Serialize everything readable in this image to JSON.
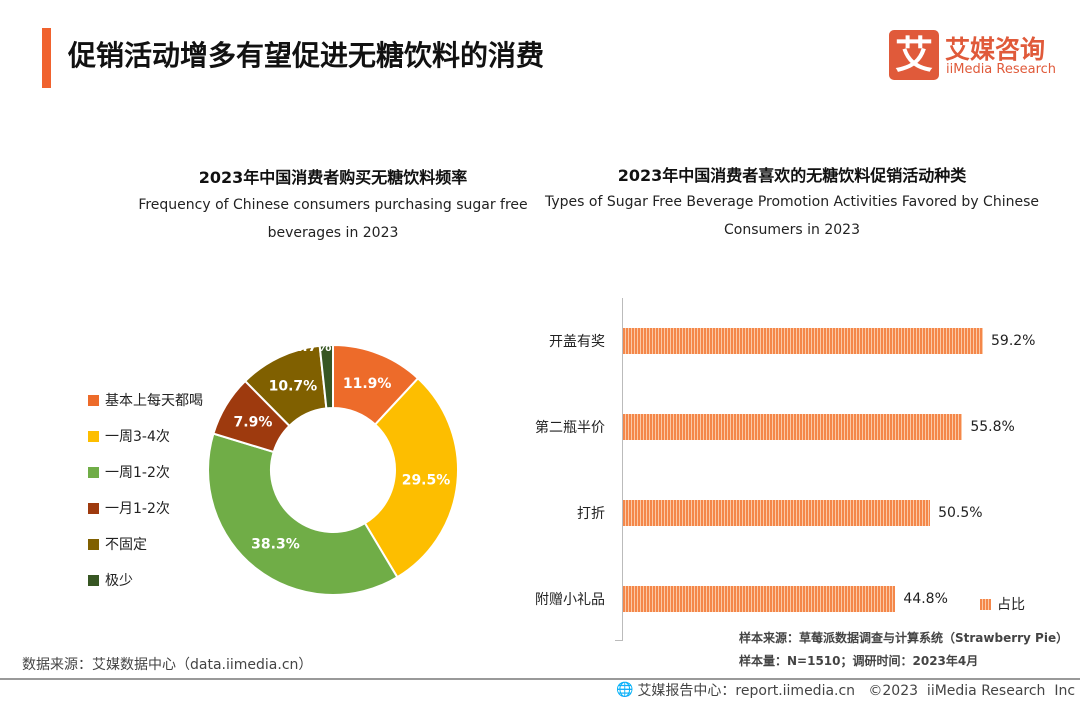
{
  "header": {
    "title": "促销活动增多有望促进无糖饮料的消费",
    "logo_mark": "艾",
    "logo_cn": "艾媒咨询",
    "logo_en": "iiMedia Research"
  },
  "colors": {
    "accent": "#F0622E",
    "bar": "#F4874A"
  },
  "chart_data": [
    {
      "type": "pie",
      "title": "2023年中国消费者购买无糖饮料频率",
      "subtitle_line1": "Frequency of Chinese consumers purchasing sugar free",
      "subtitle_line2": "beverages in 2023",
      "categories": [
        "基本上每天都喝",
        "一周3-4次",
        "一周1-2次",
        "一月1-2次",
        "不固定",
        "极少"
      ],
      "values": [
        11.9,
        29.5,
        38.3,
        7.9,
        10.7,
        1.7
      ],
      "labels": [
        "11.9%",
        "29.5%",
        "38.3%",
        "7.9%",
        "10.7%",
        "1.7%"
      ],
      "colors": [
        "#ED6B2A",
        "#FDBE00",
        "#70AD47",
        "#9E3A0E",
        "#806000",
        "#375623"
      ],
      "legend": "left",
      "donut": true
    },
    {
      "type": "bar",
      "orientation": "horizontal",
      "title": "2023年中国消费者喜欢的无糖饮料促销活动种类",
      "subtitle_line1": "Types of Sugar Free Beverage Promotion Activities Favored by Chinese",
      "subtitle_line2": "Consumers in 2023",
      "categories": [
        "开盖有奖",
        "第二瓶半价",
        "打折",
        "附赠小礼品"
      ],
      "values": [
        59.2,
        55.8,
        50.5,
        44.8
      ],
      "labels": [
        "59.2%",
        "55.8%",
        "50.5%",
        "44.8%"
      ],
      "legend_label": "占比",
      "legend": "bottom-right",
      "xlim": [
        0,
        59.2
      ]
    }
  ],
  "notes": {
    "left_source": "数据来源：艾媒数据中心（data.iimedia.cn）",
    "sample_source": "样本来源：草莓派数据调查与计算系统（Strawberry Pie）",
    "sample_size": "样本量：N=1510；调研时间：2023年4月"
  },
  "footer": {
    "text": "艾媒报告中心：report.iimedia.cn   ©2023  iiMedia Research  Inc"
  }
}
